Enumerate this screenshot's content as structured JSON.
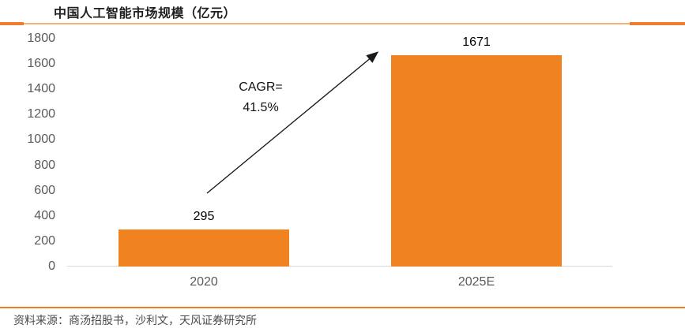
{
  "title": "中国人工智能市场规模（亿元）",
  "source_note": "资料来源：商汤招股书，沙利文，天风证券研究所",
  "colors": {
    "bar": "#F0821F",
    "accent": "#ED7D31",
    "rule_light": "#F6B470",
    "rule_bottom": "#EE7C23",
    "baseline": "#D9D9D9",
    "axis_text": "#595959",
    "value_text": "#000000",
    "arrow": "#1a1a1a"
  },
  "chart_data": {
    "type": "bar",
    "categories": [
      "2020",
      "2025E"
    ],
    "values": [
      295,
      1671
    ],
    "data_labels": [
      "295",
      "1671"
    ],
    "title": "中国人工智能市场规模（亿元）",
    "xlabel": "",
    "ylabel": "",
    "ylim": [
      0,
      1800
    ],
    "ytick_step": 200,
    "grid": false,
    "legend": "none",
    "annotation": {
      "lines": [
        "CAGR=",
        "41.5%"
      ]
    }
  }
}
